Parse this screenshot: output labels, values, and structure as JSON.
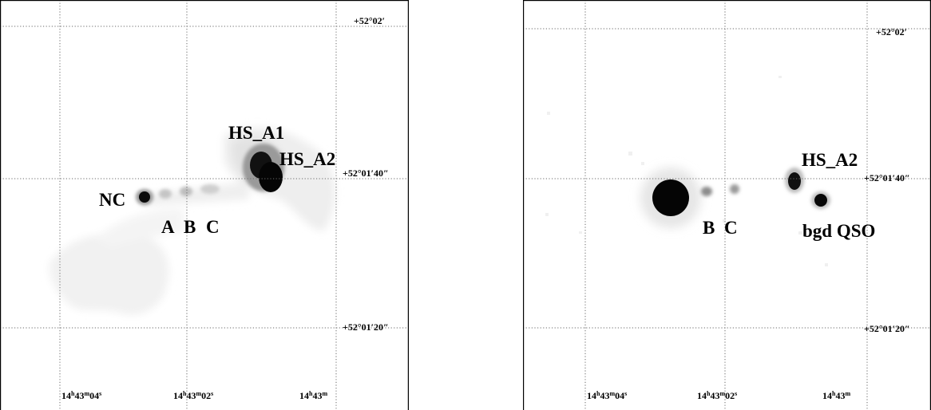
{
  "panels": [
    {
      "id": "left",
      "labels": {
        "hs_a1": "HS_A1",
        "hs_a2": "HS_A2",
        "nc": "NC",
        "a": "A",
        "b": "B",
        "c": "C"
      },
      "dec_ticks": [
        "+52°02′",
        "+52°01′40″",
        "+52°01′20″"
      ],
      "ra_ticks": [
        {
          "h": "14",
          "m": "43",
          "s": "04"
        },
        {
          "h": "14",
          "m": "43",
          "s": "02"
        },
        {
          "h": "14",
          "m": "43",
          "s": ""
        }
      ]
    },
    {
      "id": "right",
      "labels": {
        "hs_a2": "HS_A2",
        "b": "B",
        "c": "C",
        "qso": "bgd QSO"
      },
      "dec_ticks": [
        "+52°02′",
        "+52°01′40″",
        "+52°01′20″"
      ],
      "ra_ticks": [
        {
          "h": "14",
          "m": "43",
          "s": "04"
        },
        {
          "h": "14",
          "m": "43",
          "s": "02"
        },
        {
          "h": "14",
          "m": "43",
          "s": ""
        }
      ]
    }
  ]
}
